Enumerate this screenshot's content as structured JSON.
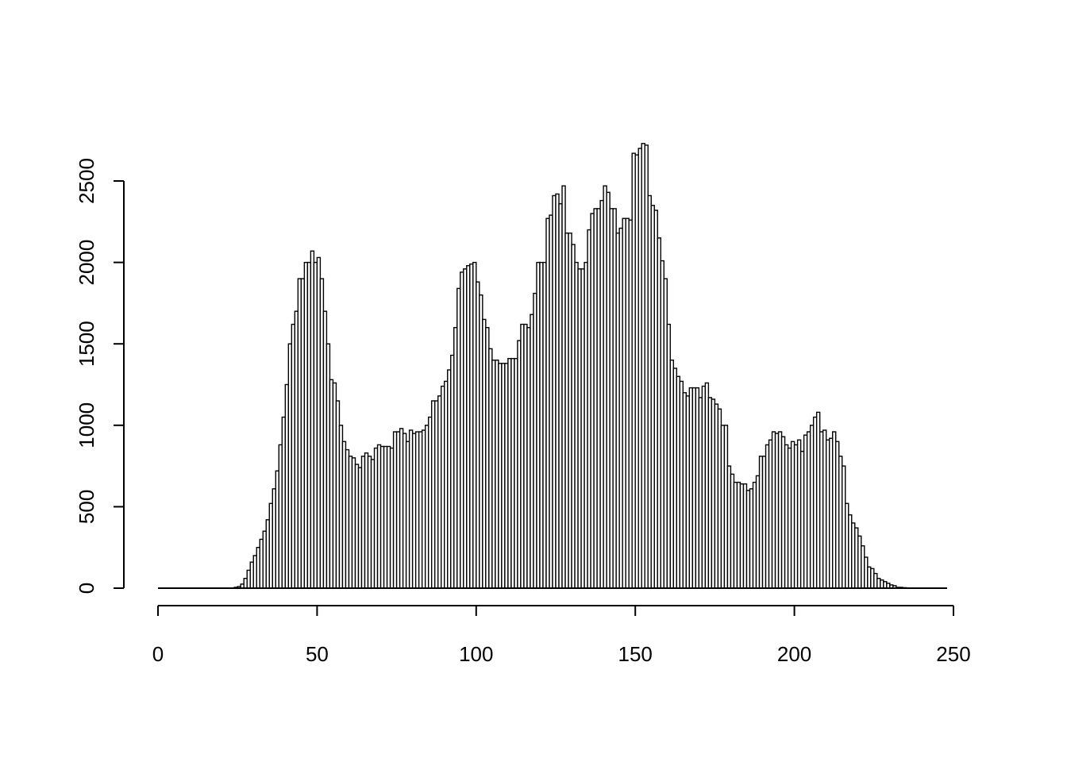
{
  "chart_data": {
    "type": "bar",
    "title": "",
    "xlabel": "",
    "ylabel": "",
    "xlim": [
      0,
      255
    ],
    "ylim": [
      0,
      2750
    ],
    "bin_start": 0,
    "bin_width": 1,
    "x_ticks": [
      0,
      50,
      100,
      150,
      200,
      250
    ],
    "x_tick_labels": [
      "0",
      "50",
      "100",
      "150",
      "200",
      "250"
    ],
    "y_ticks": [
      0,
      500,
      1000,
      1500,
      2000,
      2500
    ],
    "y_tick_labels": [
      "0",
      "500",
      "1000",
      "1500",
      "2000",
      "2500"
    ],
    "grid": false,
    "legend": "none",
    "bar_fill": "#ffffff",
    "bar_stroke": "#000000",
    "values": [
      0,
      0,
      0,
      0,
      0,
      0,
      0,
      0,
      0,
      0,
      0,
      0,
      0,
      0,
      0,
      0,
      0,
      0,
      0,
      0,
      0,
      0,
      0,
      0,
      5,
      10,
      25,
      60,
      110,
      160,
      200,
      250,
      300,
      350,
      420,
      520,
      610,
      720,
      880,
      1050,
      1250,
      1500,
      1620,
      1700,
      1900,
      1900,
      2000,
      2000,
      2070,
      2000,
      2030,
      1900,
      1700,
      1500,
      1280,
      1260,
      1150,
      1000,
      900,
      850,
      810,
      800,
      760,
      740,
      810,
      830,
      810,
      790,
      860,
      880,
      870,
      870,
      870,
      860,
      960,
      960,
      980,
      950,
      900,
      970,
      950,
      960,
      960,
      970,
      1000,
      1050,
      1150,
      1150,
      1180,
      1240,
      1270,
      1340,
      1430,
      1600,
      1840,
      1940,
      1960,
      1980,
      1990,
      2000,
      1880,
      1800,
      1650,
      1600,
      1470,
      1400,
      1400,
      1380,
      1380,
      1380,
      1410,
      1410,
      1410,
      1520,
      1620,
      1620,
      1600,
      1680,
      1810,
      2000,
      2000,
      2000,
      2270,
      2290,
      2410,
      2420,
      2360,
      2470,
      2180,
      2180,
      2110,
      2000,
      1960,
      1960,
      2000,
      2200,
      2300,
      2330,
      2330,
      2380,
      2470,
      2430,
      2330,
      2330,
      2180,
      2210,
      2270,
      2270,
      2260,
      2670,
      2660,
      2700,
      2730,
      2720,
      2410,
      2350,
      2320,
      2150,
      2010,
      1900,
      1620,
      1400,
      1350,
      1300,
      1270,
      1200,
      1180,
      1230,
      1230,
      1230,
      1170,
      1240,
      1260,
      1170,
      1160,
      1130,
      1100,
      1000,
      1000,
      750,
      700,
      650,
      650,
      640,
      640,
      600,
      610,
      650,
      690,
      810,
      810,
      880,
      910,
      960,
      950,
      960,
      930,
      880,
      860,
      900,
      880,
      910,
      840,
      940,
      960,
      1000,
      1050,
      1080,
      960,
      970,
      910,
      920,
      960,
      900,
      810,
      750,
      520,
      450,
      400,
      370,
      320,
      260,
      190,
      130,
      120,
      90,
      60,
      50,
      40,
      30,
      20,
      15,
      5,
      5,
      3,
      2,
      0,
      0,
      0,
      0,
      0,
      0,
      0,
      0,
      0,
      0,
      0,
      0
    ]
  }
}
